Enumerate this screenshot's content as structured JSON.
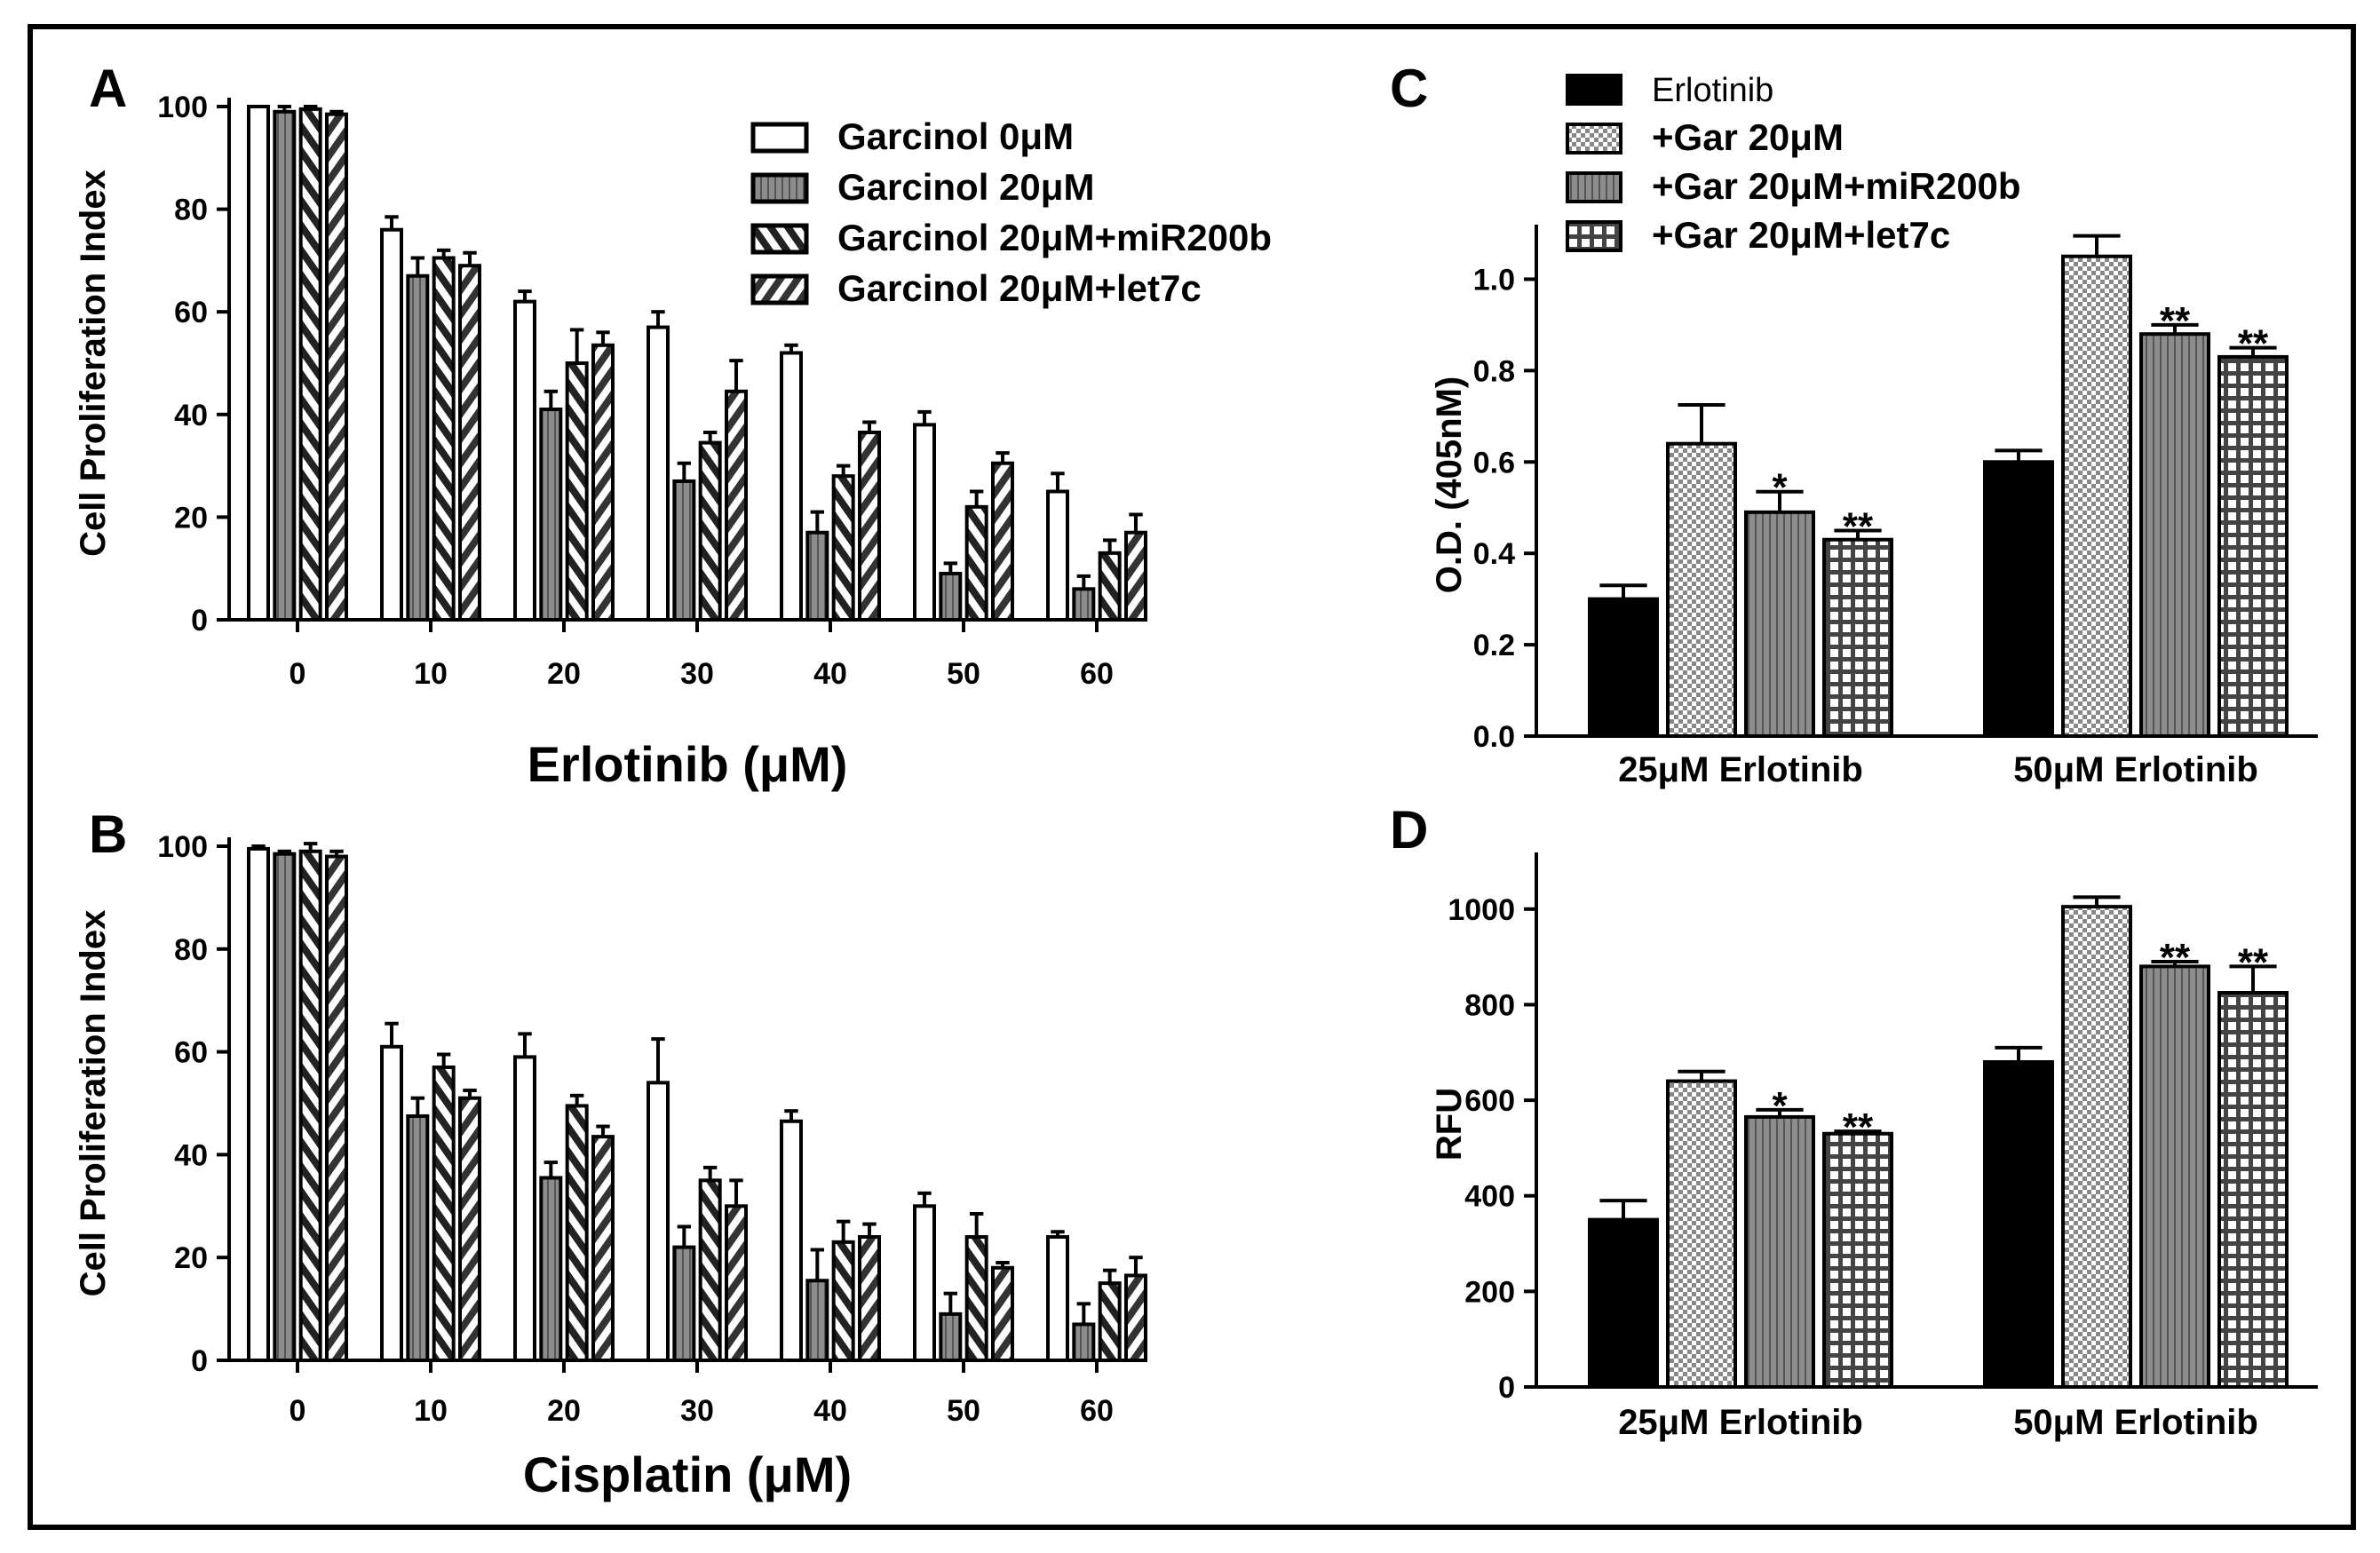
{
  "colors": {
    "ink": "#000000",
    "gray_bar": "#8c8c8c",
    "background": "#ffffff"
  },
  "panels": {
    "A": {
      "letter": "A"
    },
    "B": {
      "letter": "B"
    },
    "C": {
      "letter": "C"
    },
    "D": {
      "letter": "D"
    }
  },
  "chart_data": [
    {
      "panel": "A",
      "type": "bar",
      "xlabel": "Erlotinib (μM)",
      "ylabel": "Cell Proliferation Index",
      "ylim": [
        0,
        100
      ],
      "yticks": [
        "0",
        "20",
        "40",
        "60",
        "80",
        "100"
      ],
      "categories": [
        "0",
        "10",
        "20",
        "30",
        "40",
        "50",
        "60"
      ],
      "legend_position": "top-right",
      "series": [
        {
          "name": "Garcinol 0μM",
          "pattern": "white",
          "values": [
            100,
            76,
            62,
            57,
            52,
            38,
            25
          ],
          "errors": [
            0,
            2.5,
            2,
            3,
            1.5,
            2.5,
            3.5
          ]
        },
        {
          "name": "Garcinol 20μM",
          "pattern": "gray-vertical",
          "values": [
            99,
            67,
            41,
            27,
            17,
            9,
            6
          ],
          "errors": [
            1,
            3.5,
            3.5,
            3.5,
            4,
            2,
            2.5
          ]
        },
        {
          "name": "Garcinol 20μM+miR200b",
          "pattern": "diag-right",
          "values": [
            99.5,
            70.5,
            50,
            34.5,
            28,
            22,
            13
          ],
          "errors": [
            0.5,
            1.5,
            6.5,
            2,
            2,
            3,
            2.5
          ]
        },
        {
          "name": "Garcinol 20μM+let7c",
          "pattern": "diag-left",
          "values": [
            98.5,
            69,
            53.5,
            44.5,
            36.5,
            30.5,
            17
          ],
          "errors": [
            0.5,
            2.5,
            2.5,
            6,
            2,
            2,
            3.5
          ]
        }
      ]
    },
    {
      "panel": "B",
      "type": "bar",
      "xlabel": "Cisplatin (μM)",
      "ylabel": "Cell Proliferation Index",
      "ylim": [
        0,
        100
      ],
      "yticks": [
        "0",
        "20",
        "40",
        "60",
        "80",
        "100"
      ],
      "categories": [
        "0",
        "10",
        "20",
        "30",
        "40",
        "50",
        "60"
      ],
      "series": [
        {
          "name": "Garcinol 0μM",
          "pattern": "white",
          "values": [
            99.5,
            61,
            59,
            54,
            46.5,
            30,
            24
          ],
          "errors": [
            0.5,
            4.5,
            4.5,
            8.5,
            2,
            2.5,
            1
          ]
        },
        {
          "name": "Garcinol 20μM",
          "pattern": "gray-vertical",
          "values": [
            98.5,
            47.5,
            35.5,
            22,
            15.5,
            9,
            7
          ],
          "errors": [
            0.5,
            3.5,
            3,
            4,
            6,
            4,
            4
          ]
        },
        {
          "name": "Garcinol 20μM+miR200b",
          "pattern": "diag-right",
          "values": [
            99,
            57,
            49.5,
            35,
            23,
            24,
            15
          ],
          "errors": [
            1.5,
            2.5,
            2,
            2.5,
            4,
            4.5,
            2.5
          ]
        },
        {
          "name": "Garcinol 20μM+let7c",
          "pattern": "diag-left",
          "values": [
            98,
            51,
            43.5,
            30,
            24,
            18,
            16.5
          ],
          "errors": [
            1,
            1.5,
            2,
            5,
            2.5,
            1,
            3.5
          ]
        }
      ]
    },
    {
      "panel": "C",
      "type": "bar",
      "ylabel": "O.D. (405nM)",
      "ylim": [
        0,
        1.1
      ],
      "yticks": [
        "0.0",
        "0.2",
        "0.4",
        "0.6",
        "0.8",
        "1.0"
      ],
      "categories": [
        "25μM Erlotinib",
        "50μM Erlotinib"
      ],
      "legend_position": "top-left",
      "series": [
        {
          "name": "Erlotinib",
          "pattern": "black",
          "values": [
            0.3,
            0.6
          ],
          "errors": [
            0.03,
            0.025
          ],
          "sig": [
            "",
            ""
          ]
        },
        {
          "name": "+Gar 20μM",
          "pattern": "checker-small",
          "values": [
            0.64,
            1.05
          ],
          "errors": [
            0.085,
            0.045
          ],
          "sig": [
            "",
            ""
          ]
        },
        {
          "name": "+Gar 20μM+miR200b",
          "pattern": "gray-vertical",
          "values": [
            0.49,
            0.88
          ],
          "errors": [
            0.045,
            0.02
          ],
          "sig": [
            "*",
            "**"
          ]
        },
        {
          "name": "+Gar 20μM+let7c",
          "pattern": "grid-large",
          "values": [
            0.43,
            0.83
          ],
          "errors": [
            0.02,
            0.02
          ],
          "sig": [
            "**",
            "**"
          ]
        }
      ]
    },
    {
      "panel": "D",
      "type": "bar",
      "ylabel": "RFU",
      "ylim": [
        0,
        1100
      ],
      "yticks": [
        "0",
        "200",
        "400",
        "600",
        "800",
        "1000"
      ],
      "categories": [
        "25μM Erlotinib",
        "50μM Erlotinib"
      ],
      "series": [
        {
          "name": "Erlotinib",
          "pattern": "black",
          "values": [
            350,
            680
          ],
          "errors": [
            40,
            30
          ],
          "sig": [
            "",
            ""
          ]
        },
        {
          "name": "+Gar 20μM",
          "pattern": "checker-small",
          "values": [
            640,
            1005
          ],
          "errors": [
            20,
            20
          ],
          "sig": [
            "",
            ""
          ]
        },
        {
          "name": "+Gar 20μM+miR200b",
          "pattern": "gray-vertical",
          "values": [
            565,
            880
          ],
          "errors": [
            15,
            10
          ],
          "sig": [
            "*",
            "**"
          ]
        },
        {
          "name": "+Gar 20μM+let7c",
          "pattern": "grid-large",
          "values": [
            530,
            825
          ],
          "errors": [
            5,
            55
          ],
          "sig": [
            "**",
            "**"
          ]
        }
      ]
    }
  ]
}
